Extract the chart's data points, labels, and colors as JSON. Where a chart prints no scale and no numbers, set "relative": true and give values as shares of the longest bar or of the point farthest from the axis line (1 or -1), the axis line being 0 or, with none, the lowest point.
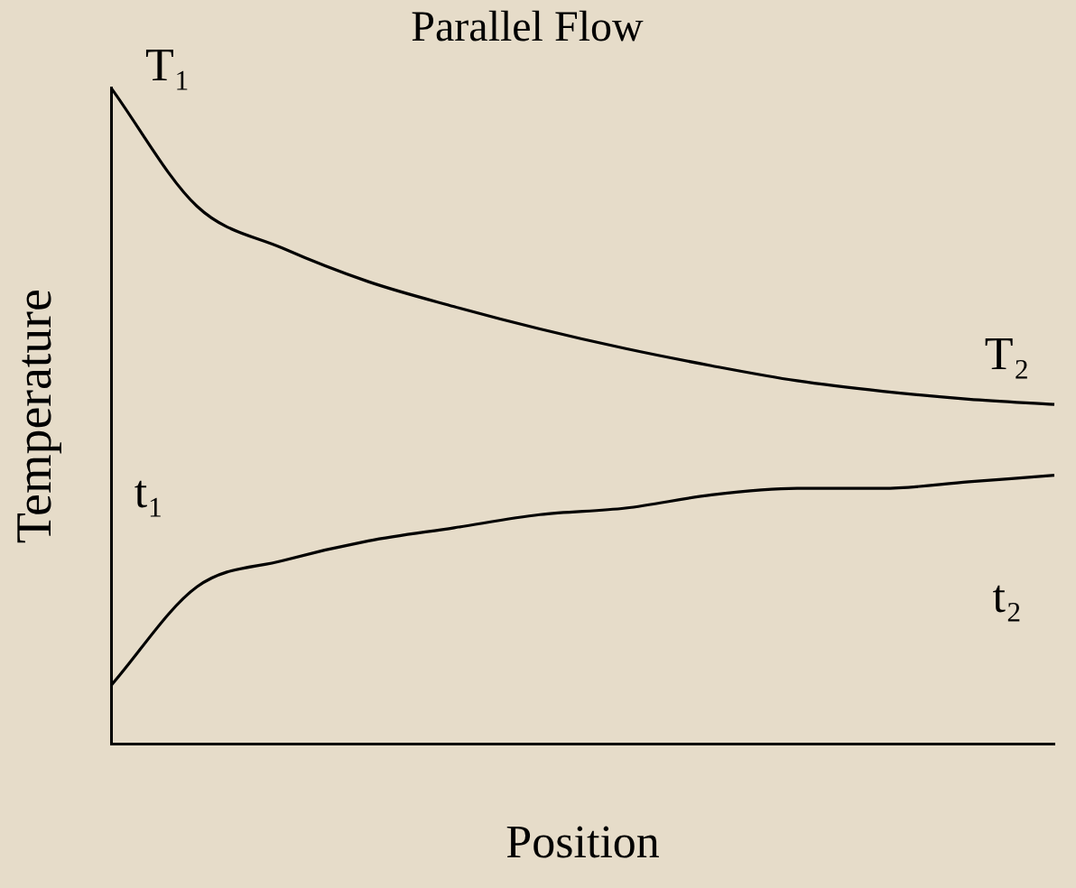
{
  "chart_data": {
    "type": "line",
    "title": "Parallel Flow",
    "xlabel": "Position",
    "ylabel": "Temperature",
    "relative": true,
    "categories": [
      null,
      null,
      null,
      null,
      null,
      null,
      null,
      null,
      null,
      null,
      null,
      null
    ],
    "series": [
      {
        "color": "#000000",
        "values": [
          1,
          0.82,
          0.756,
          0.705,
          0.667,
          0.633,
          0.603,
          0.577,
          0.554,
          0.538,
          0.526,
          0.518
        ]
      },
      {
        "color": "#000000",
        "values": [
          0.09,
          0.24,
          0.28,
          0.31,
          0.33,
          0.35,
          0.36,
          0.38,
          0.39,
          0.39,
          0.4,
          0.41
        ]
      }
    ],
    "annotations": [
      "T₁",
      "T₂",
      "t₁",
      "t₂"
    ],
    "marker": "none",
    "line_style": "solid",
    "grid": false,
    "legend": false
  }
}
